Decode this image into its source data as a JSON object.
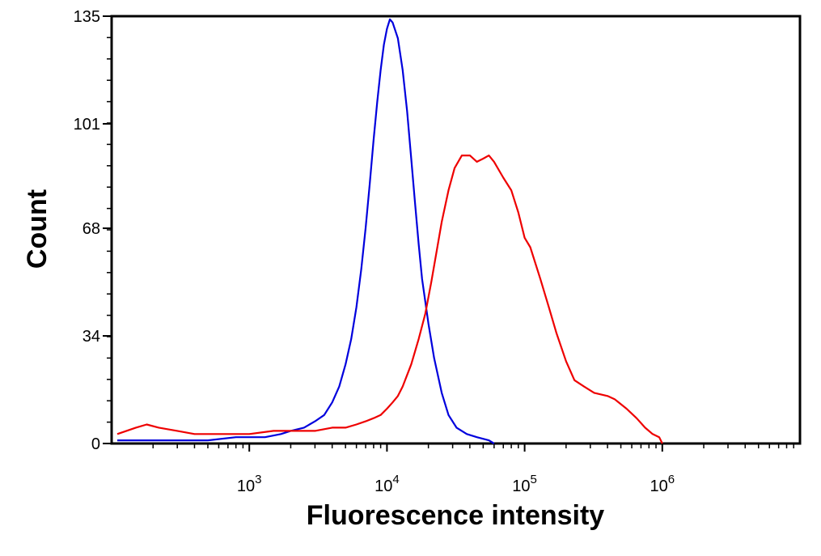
{
  "chart_data": {
    "type": "line",
    "title": "",
    "xlabel": "Fluorescence intensity",
    "ylabel": "Count",
    "x_scale": "log",
    "xlim": [
      100,
      10000000
    ],
    "ylim": [
      0,
      135
    ],
    "x_ticks": [
      {
        "value": 1000,
        "base": "10",
        "exp": "3"
      },
      {
        "value": 10000,
        "base": "10",
        "exp": "4"
      },
      {
        "value": 100000,
        "base": "10",
        "exp": "5"
      },
      {
        "value": 1000000,
        "base": "10",
        "exp": "6"
      }
    ],
    "y_ticks": [
      0,
      34,
      68,
      101,
      135
    ],
    "grid": false,
    "legend": "none",
    "series": [
      {
        "color": "#0000dd",
        "points": [
          [
            110,
            1
          ],
          [
            150,
            1
          ],
          [
            200,
            1
          ],
          [
            300,
            1
          ],
          [
            500,
            1
          ],
          [
            800,
            2
          ],
          [
            1000,
            2
          ],
          [
            1300,
            2
          ],
          [
            1700,
            3
          ],
          [
            2000,
            4
          ],
          [
            2500,
            5
          ],
          [
            3000,
            7
          ],
          [
            3500,
            9
          ],
          [
            4000,
            13
          ],
          [
            4500,
            18
          ],
          [
            5000,
            25
          ],
          [
            5500,
            33
          ],
          [
            6000,
            43
          ],
          [
            6500,
            55
          ],
          [
            7000,
            68
          ],
          [
            7500,
            82
          ],
          [
            8000,
            96
          ],
          [
            8500,
            108
          ],
          [
            9000,
            118
          ],
          [
            9500,
            126
          ],
          [
            10000,
            131
          ],
          [
            10500,
            134
          ],
          [
            11000,
            133
          ],
          [
            12000,
            128
          ],
          [
            13000,
            118
          ],
          [
            14000,
            105
          ],
          [
            15000,
            90
          ],
          [
            16000,
            76
          ],
          [
            17000,
            63
          ],
          [
            18000,
            52
          ],
          [
            20000,
            38
          ],
          [
            22000,
            27
          ],
          [
            25000,
            16
          ],
          [
            28000,
            9
          ],
          [
            32000,
            5
          ],
          [
            38000,
            3
          ],
          [
            45000,
            2
          ],
          [
            55000,
            1
          ],
          [
            60000,
            0
          ]
        ]
      },
      {
        "color": "#ee0000",
        "points": [
          [
            110,
            3
          ],
          [
            150,
            5
          ],
          [
            180,
            6
          ],
          [
            220,
            5
          ],
          [
            300,
            4
          ],
          [
            400,
            3
          ],
          [
            600,
            3
          ],
          [
            800,
            3
          ],
          [
            1000,
            3
          ],
          [
            1500,
            4
          ],
          [
            2000,
            4
          ],
          [
            3000,
            4
          ],
          [
            4000,
            5
          ],
          [
            5000,
            5
          ],
          [
            6000,
            6
          ],
          [
            7000,
            7
          ],
          [
            8000,
            8
          ],
          [
            9000,
            9
          ],
          [
            10000,
            11
          ],
          [
            11000,
            13
          ],
          [
            12000,
            15
          ],
          [
            13000,
            18
          ],
          [
            15000,
            25
          ],
          [
            17000,
            33
          ],
          [
            19000,
            41
          ],
          [
            21000,
            51
          ],
          [
            23000,
            61
          ],
          [
            25000,
            70
          ],
          [
            28000,
            80
          ],
          [
            31000,
            87
          ],
          [
            35000,
            91
          ],
          [
            40000,
            91
          ],
          [
            45000,
            89
          ],
          [
            50000,
            90
          ],
          [
            55000,
            91
          ],
          [
            60000,
            89
          ],
          [
            70000,
            84
          ],
          [
            80000,
            80
          ],
          [
            90000,
            73
          ],
          [
            100000,
            65
          ],
          [
            110000,
            62
          ],
          [
            130000,
            52
          ],
          [
            150000,
            43
          ],
          [
            170000,
            35
          ],
          [
            200000,
            26
          ],
          [
            230000,
            20
          ],
          [
            270000,
            18
          ],
          [
            320000,
            16
          ],
          [
            400000,
            15
          ],
          [
            450000,
            14
          ],
          [
            550000,
            11
          ],
          [
            650000,
            8
          ],
          [
            750000,
            5
          ],
          [
            850000,
            3
          ],
          [
            950000,
            2
          ],
          [
            1000000,
            0
          ]
        ]
      }
    ]
  }
}
